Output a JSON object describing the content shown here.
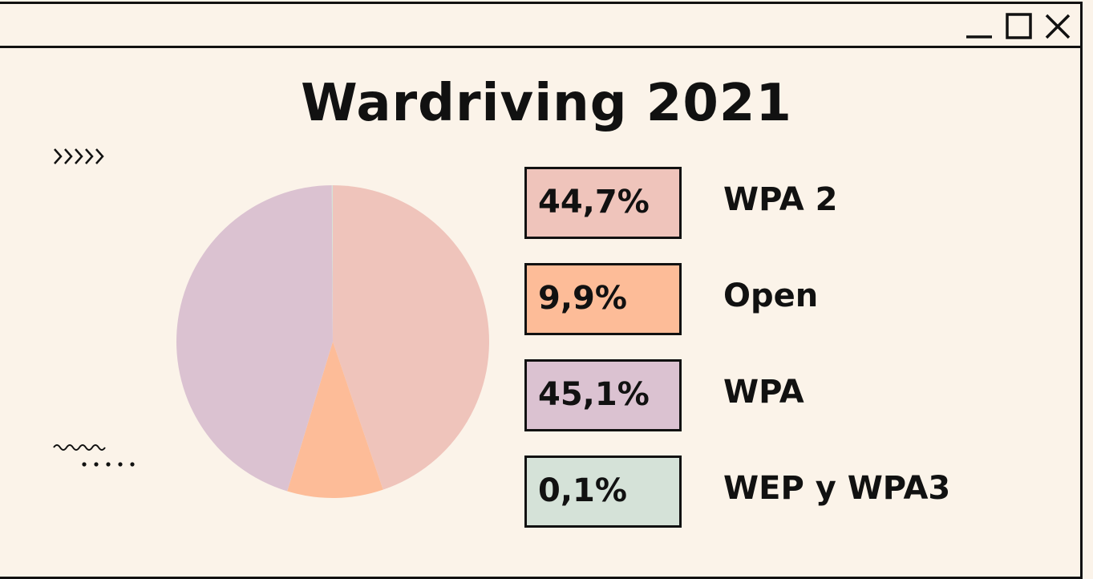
{
  "window": {
    "minimize_icon": "minimize-icon",
    "maximize_icon": "maximize-icon",
    "close_icon": "close-icon"
  },
  "chart_data": {
    "type": "pie",
    "title": "Wardriving 2021",
    "slices": [
      {
        "label": "WPA 2",
        "value": 44.7,
        "display": "44,7%",
        "color": "#efc4bb"
      },
      {
        "label": "Open",
        "value": 9.9,
        "display": "9,9%",
        "color": "#fdbc98"
      },
      {
        "label": "WPA",
        "value": 45.1,
        "display": "45,1%",
        "color": "#dbc2d1"
      },
      {
        "label": "WEP y WPA3",
        "value": 0.1,
        "display": "0,1%",
        "color": "#d5e2d8"
      }
    ]
  }
}
